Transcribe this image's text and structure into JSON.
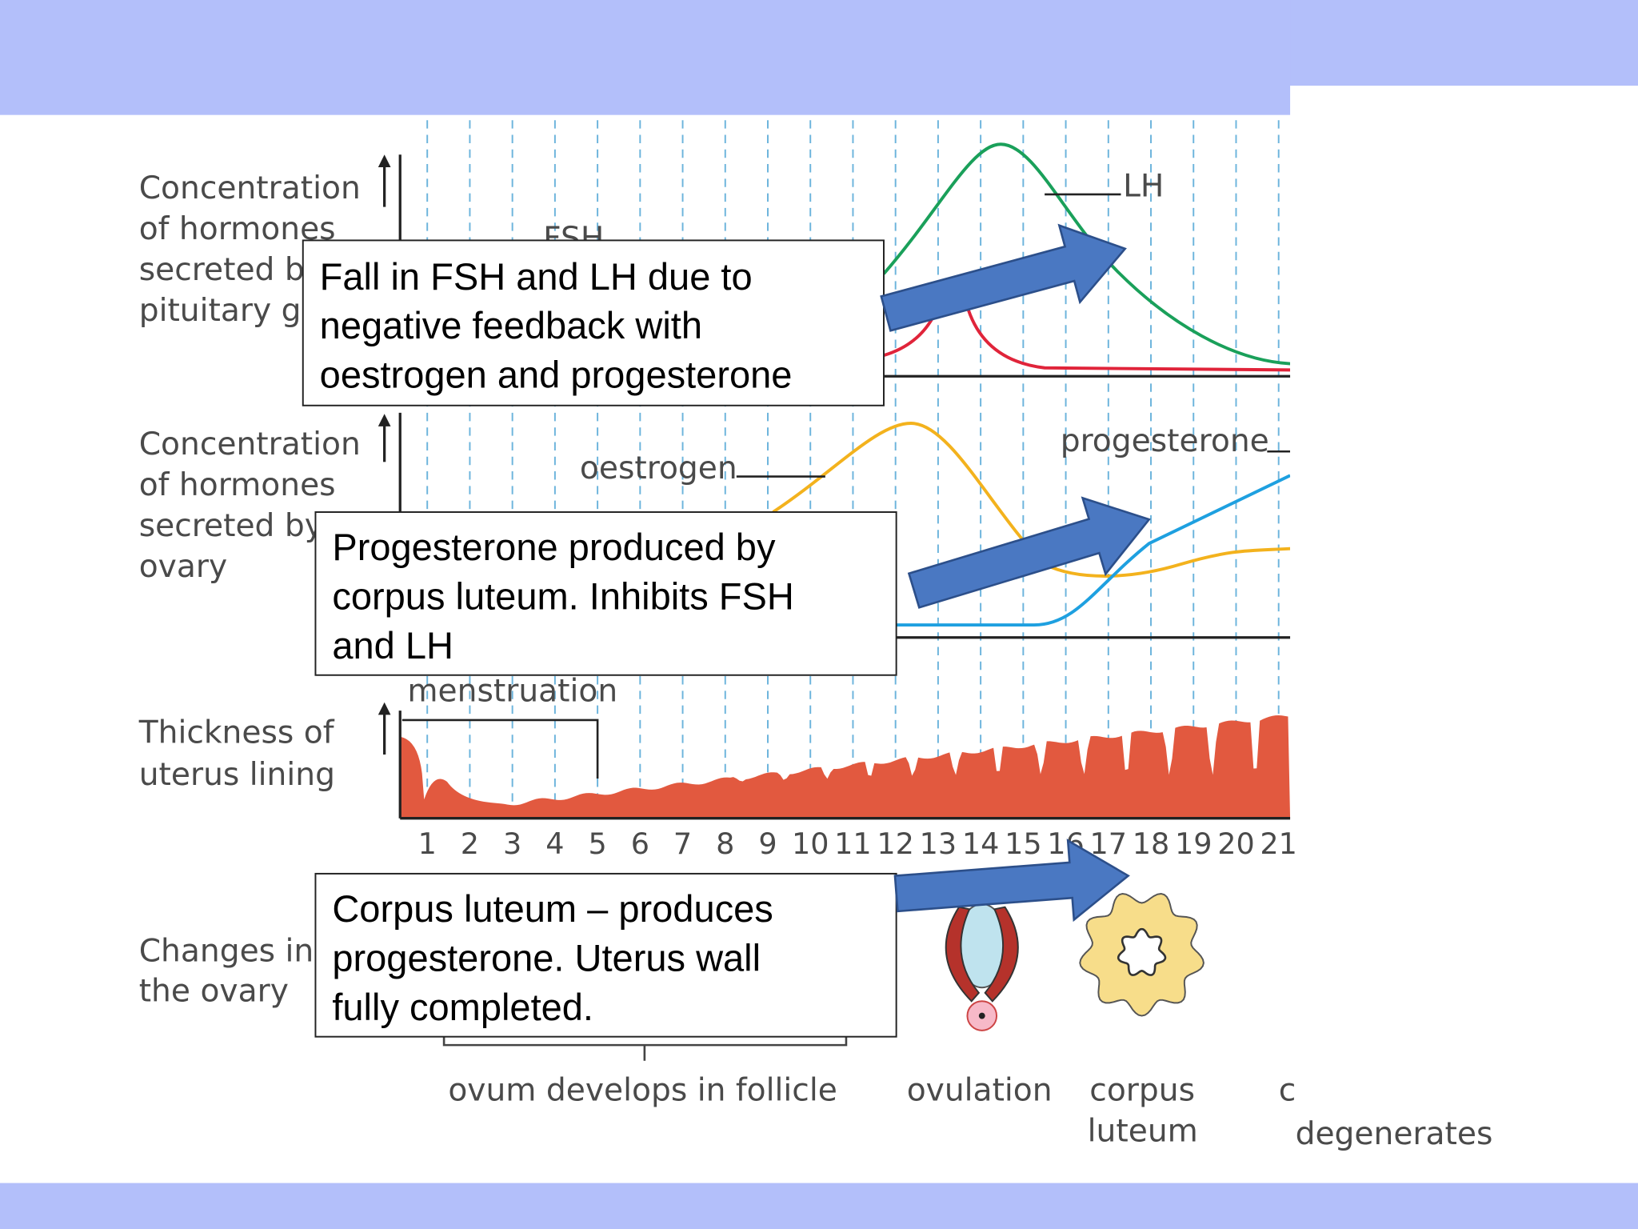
{
  "diagram": {
    "axis_labels": {
      "pituitary": [
        "Concentration",
        "of hormones",
        "secreted by",
        "pituitary gland"
      ],
      "ovary": [
        "Concentration",
        "of hormones",
        "secreted by",
        "ovary"
      ],
      "uterus": [
        "Thickness of",
        "uterus lining"
      ],
      "ovary_changes": [
        "Changes in",
        "the ovary"
      ]
    },
    "curve_labels": {
      "fsh": "FSH",
      "lh": "LH",
      "oestrogen": "oestrogen",
      "progesterone": "progesterone"
    },
    "menstruation": "menstruation",
    "days": [
      1,
      2,
      3,
      4,
      5,
      6,
      7,
      8,
      9,
      10,
      11,
      12,
      13,
      14,
      15,
      16,
      17,
      18,
      19,
      20,
      21
    ],
    "stage_labels": {
      "follicle": "ovum develops in follicle",
      "ovulation": "ovulation",
      "corpus_luteum": [
        "corpus",
        "luteum"
      ],
      "degenerates": [
        "c",
        "degenerates"
      ]
    }
  },
  "callouts": [
    {
      "lines": [
        "Fall in FSH and LH due to",
        "negative feedback with",
        "oestrogen and progesterone"
      ]
    },
    {
      "lines": [
        "Progesterone produced by",
        "corpus luteum. Inhibits FSH",
        "and LH"
      ]
    },
    {
      "lines": [
        "Corpus luteum – produces",
        "progesterone. Uterus wall",
        "fully completed."
      ]
    }
  ]
}
